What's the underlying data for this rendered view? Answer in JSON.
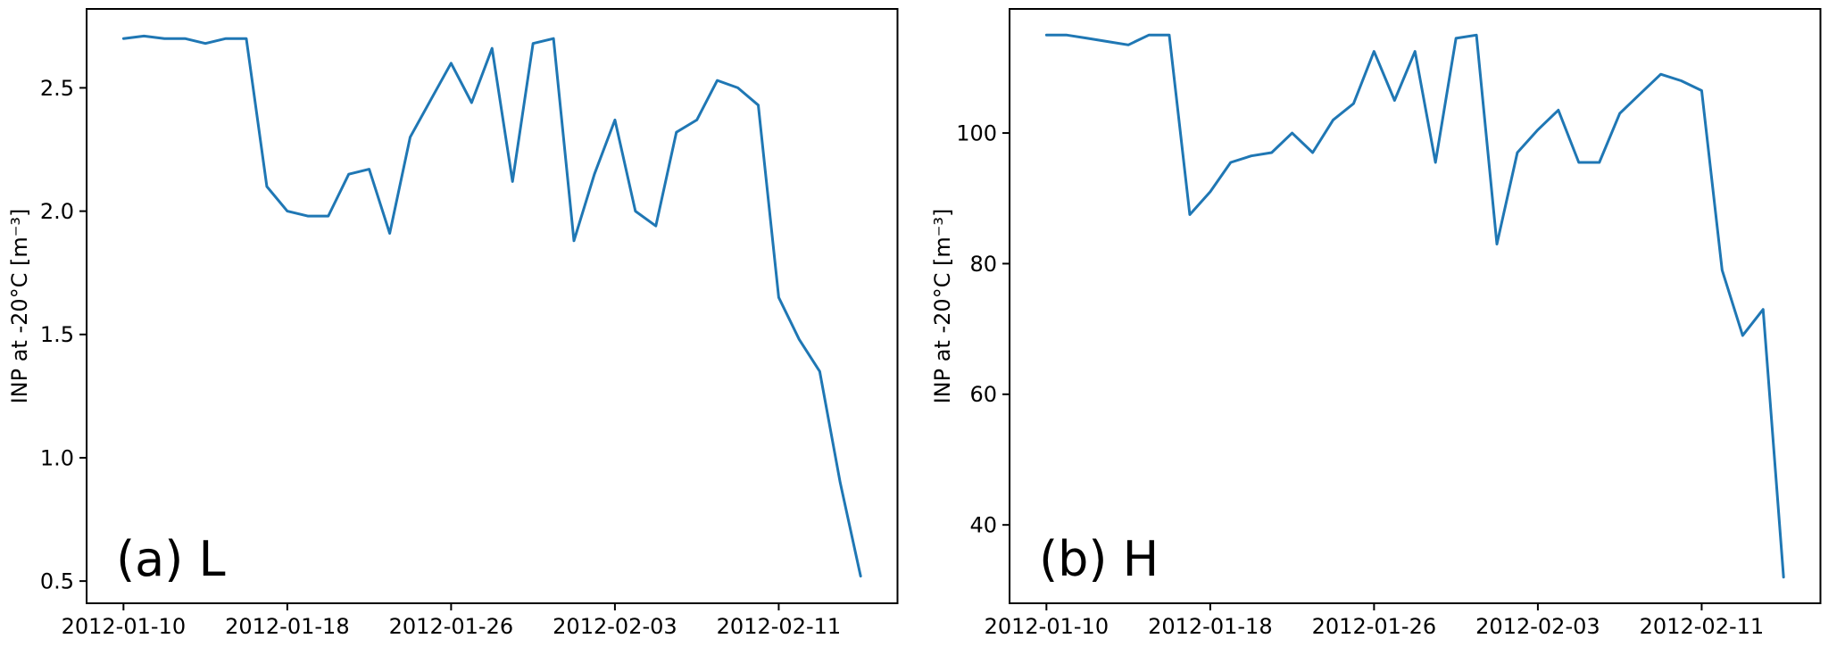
{
  "figure": {
    "background": "#ffffff",
    "line_color": "#1f77b4",
    "axis_color": "#000000"
  },
  "chart_data": [
    {
      "type": "line",
      "panel_label": "(a) L",
      "title": "",
      "xlabel": "",
      "ylabel": "INP at -20°C [m⁻³]",
      "grid": false,
      "legend": null,
      "x_dates": [
        "2012-01-10",
        "2012-01-11",
        "2012-01-12",
        "2012-01-13",
        "2012-01-14",
        "2012-01-15",
        "2012-01-16",
        "2012-01-17",
        "2012-01-18",
        "2012-01-19",
        "2012-01-20",
        "2012-01-21",
        "2012-01-22",
        "2012-01-23",
        "2012-01-24",
        "2012-01-25",
        "2012-01-26",
        "2012-01-27",
        "2012-01-28",
        "2012-01-29",
        "2012-01-30",
        "2012-01-31",
        "2012-02-01",
        "2012-02-02",
        "2012-02-03",
        "2012-02-04",
        "2012-02-05",
        "2012-02-06",
        "2012-02-07",
        "2012-02-08",
        "2012-02-09",
        "2012-02-10",
        "2012-02-11",
        "2012-02-12",
        "2012-02-13",
        "2012-02-14",
        "2012-02-15"
      ],
      "values": [
        2.7,
        2.71,
        2.7,
        2.7,
        2.68,
        2.7,
        2.7,
        2.1,
        2.0,
        1.98,
        1.98,
        2.15,
        2.17,
        1.91,
        2.3,
        2.45,
        2.6,
        2.44,
        2.66,
        2.12,
        2.68,
        2.7,
        1.88,
        2.15,
        2.37,
        2.0,
        1.94,
        2.32,
        2.37,
        2.53,
        2.5,
        2.43,
        1.65,
        1.48,
        1.35,
        0.9,
        0.52
      ],
      "x_tick_positions": [
        0,
        8,
        16,
        24,
        32
      ],
      "x_tick_labels": [
        "2012-01-10",
        "2012-01-18",
        "2012-01-26",
        "2012-02-03",
        "2012-02-11"
      ],
      "y_ticks": [
        0.5,
        1.0,
        1.5,
        2.0,
        2.5
      ],
      "y_tick_labels": [
        "0.5",
        "1.0",
        "1.5",
        "2.0",
        "2.5"
      ],
      "xlim": [
        -1.8,
        37.8
      ],
      "ylim": [
        0.41,
        2.82
      ]
    },
    {
      "type": "line",
      "panel_label": "(b) H",
      "title": "",
      "xlabel": "",
      "ylabel": "INP at -20°C [m⁻³]",
      "grid": false,
      "legend": null,
      "x_dates": [
        "2012-01-10",
        "2012-01-11",
        "2012-01-12",
        "2012-01-13",
        "2012-01-14",
        "2012-01-15",
        "2012-01-16",
        "2012-01-17",
        "2012-01-18",
        "2012-01-19",
        "2012-01-20",
        "2012-01-21",
        "2012-01-22",
        "2012-01-23",
        "2012-01-24",
        "2012-01-25",
        "2012-01-26",
        "2012-01-27",
        "2012-01-28",
        "2012-01-29",
        "2012-01-30",
        "2012-01-31",
        "2012-02-01",
        "2012-02-02",
        "2012-02-03",
        "2012-02-04",
        "2012-02-05",
        "2012-02-06",
        "2012-02-07",
        "2012-02-08",
        "2012-02-09",
        "2012-02-10",
        "2012-02-11",
        "2012-02-12",
        "2012-02-13",
        "2012-02-14",
        "2012-02-15"
      ],
      "values": [
        115,
        115,
        114.5,
        114,
        113.5,
        115,
        115,
        87.5,
        91,
        95.5,
        96.5,
        97,
        100,
        97,
        102,
        104.5,
        112.5,
        105,
        112.5,
        95.5,
        114.5,
        115,
        83,
        97,
        100.5,
        103.5,
        95.5,
        95.5,
        103,
        106,
        109,
        108,
        106.5,
        79,
        69,
        73,
        32
      ],
      "x_tick_positions": [
        0,
        8,
        16,
        24,
        32
      ],
      "x_tick_labels": [
        "2012-01-10",
        "2012-01-18",
        "2012-01-26",
        "2012-02-03",
        "2012-02-11"
      ],
      "y_ticks": [
        40,
        60,
        80,
        100
      ],
      "y_tick_labels": [
        "40",
        "60",
        "80",
        "100"
      ],
      "xlim": [
        -1.8,
        37.8
      ],
      "ylim": [
        28,
        119
      ]
    }
  ]
}
